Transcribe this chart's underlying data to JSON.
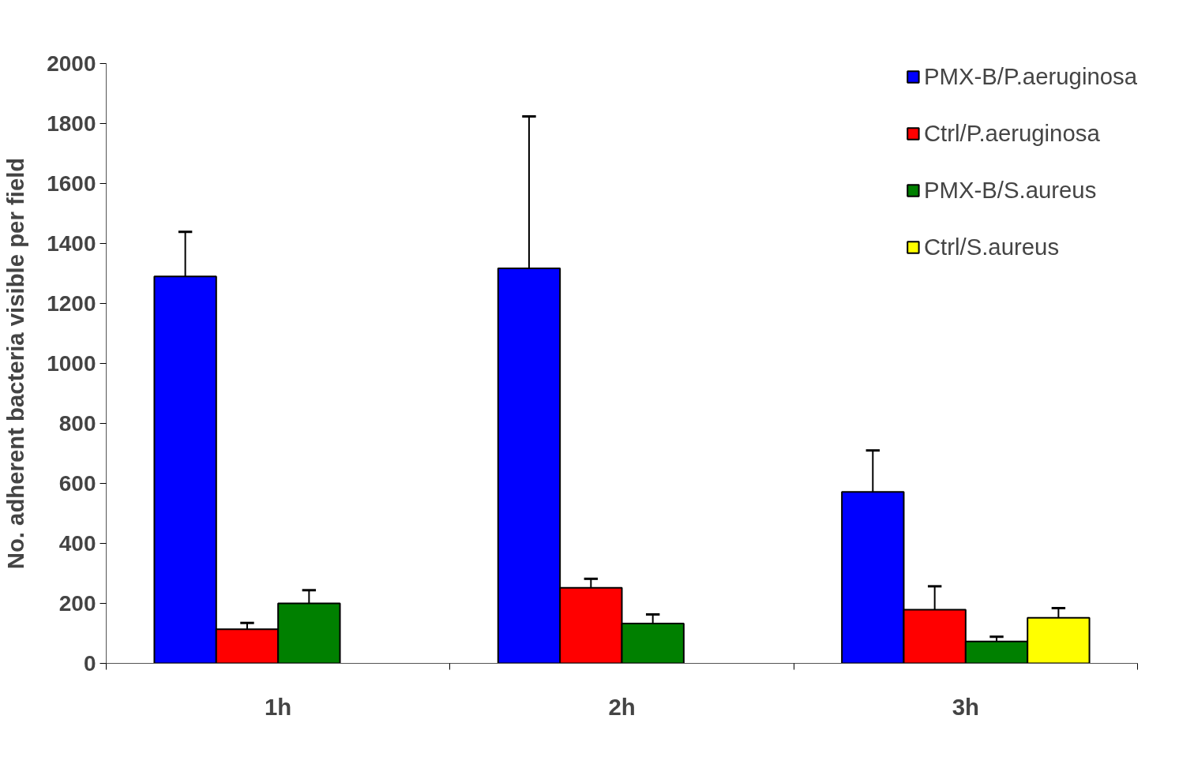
{
  "chart_data": {
    "type": "bar",
    "ylabel": "No. adherent bacteria visible per field",
    "categories": [
      "1h",
      "2h",
      "3h"
    ],
    "ylim": [
      0,
      2000
    ],
    "yticks": [
      0,
      200,
      400,
      600,
      800,
      1000,
      1200,
      1400,
      1600,
      1800,
      2000
    ],
    "grid": false,
    "legend": "top right",
    "series": [
      {
        "name": "PMX-B/P.aeruginosa",
        "color": "#0000ff",
        "values": [
          1290,
          1317,
          572
        ],
        "errors": [
          [
            1290,
            1439
          ],
          [
            1317,
            1824
          ],
          [
            572,
            710
          ]
        ]
      },
      {
        "name": "Ctrl/P.aeruginosa",
        "color": "#ff0000",
        "values": [
          114,
          252,
          179
        ],
        "errors": [
          [
            114,
            135
          ],
          [
            252,
            282
          ],
          [
            179,
            257
          ]
        ]
      },
      {
        "name": "PMX-B/S.aureus",
        "color": "#008000",
        "values": [
          200,
          133,
          73
        ],
        "errors": [
          [
            200,
            244
          ],
          [
            133,
            163
          ],
          [
            73,
            89
          ]
        ]
      },
      {
        "name": "Ctrl/S.aureus",
        "color": "#ffff00",
        "values": [
          null,
          null,
          152
        ],
        "errors": [
          null,
          null,
          [
            152,
            184
          ]
        ]
      }
    ]
  }
}
